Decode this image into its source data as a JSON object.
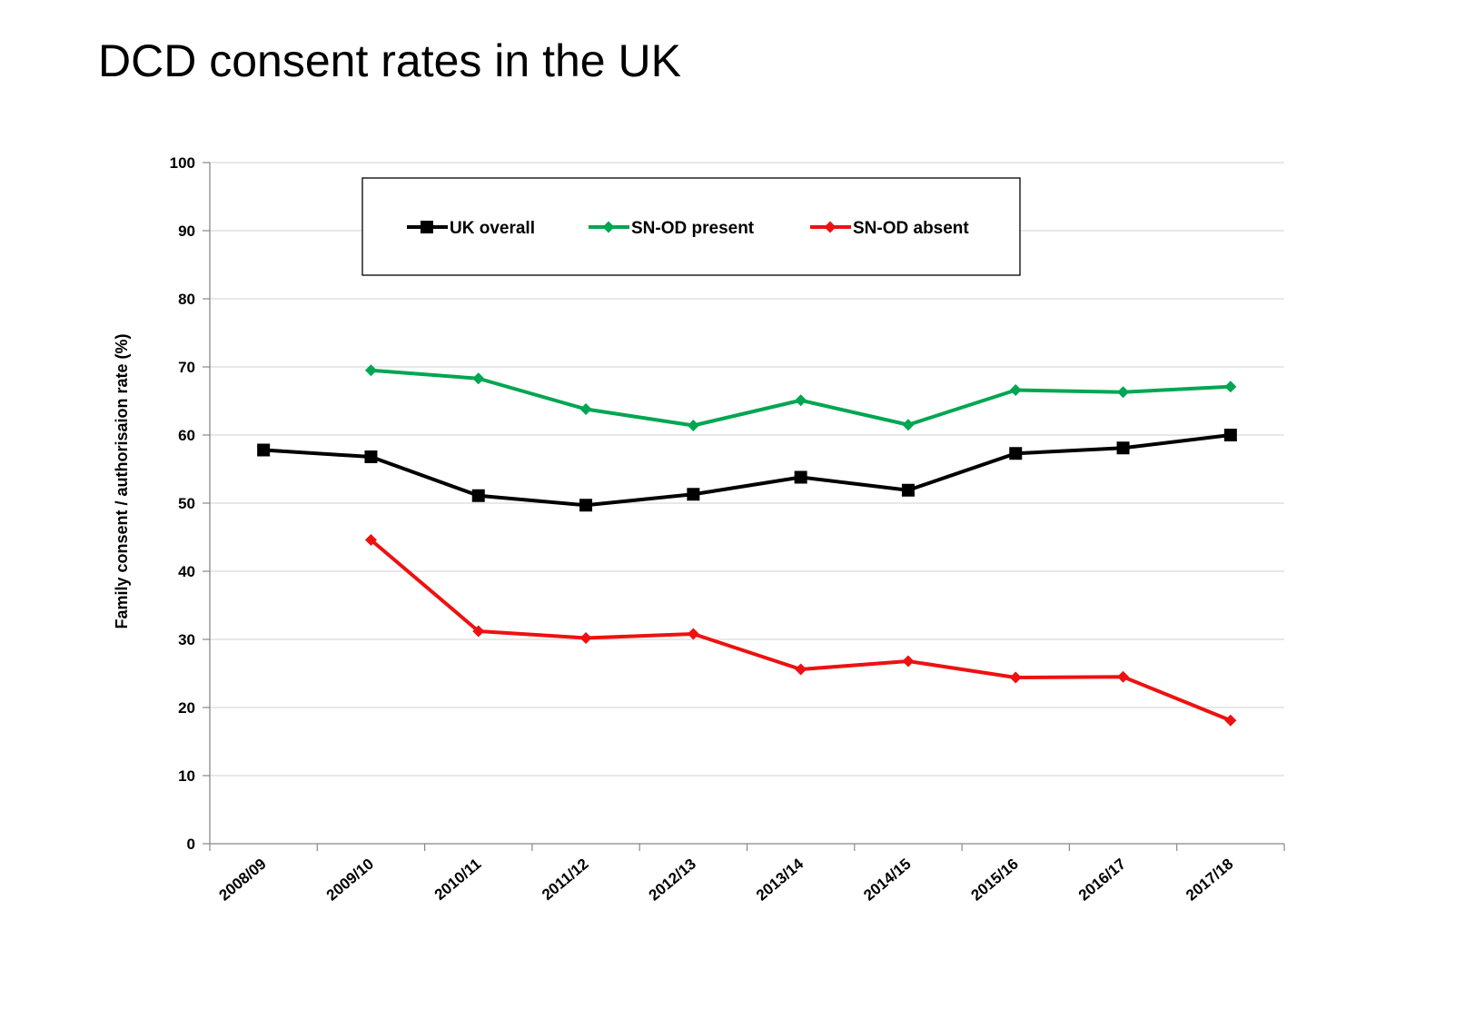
{
  "slide": {
    "title": "DCD consent rates in the UK"
  },
  "chart_data": {
    "type": "line",
    "title": "DCD consent rates in the UK",
    "xlabel": "",
    "ylabel": "Family consent / authorisaion rate (%)",
    "ylim": [
      0,
      100
    ],
    "yticks": [
      0,
      10,
      20,
      30,
      40,
      50,
      60,
      70,
      80,
      90,
      100
    ],
    "grid": true,
    "legend_position": "top",
    "categories": [
      "2008/09",
      "2009/10",
      "2010/11",
      "2011/12",
      "2012/13",
      "2013/14",
      "2014/15",
      "2015/16",
      "2016/17",
      "2017/18"
    ],
    "series": [
      {
        "name": "UK overall",
        "color": "#000000",
        "marker": "square",
        "values": [
          57.8,
          56.8,
          51.1,
          49.7,
          51.3,
          53.8,
          51.9,
          57.3,
          58.1,
          60.0
        ]
      },
      {
        "name": "SN-OD present",
        "color": "#00a651",
        "marker": "diamond",
        "values": [
          null,
          69.5,
          68.3,
          63.8,
          61.4,
          65.1,
          61.5,
          66.6,
          66.3,
          67.1
        ]
      },
      {
        "name": "SN-OD absent",
        "color": "#ee1111",
        "marker": "diamond",
        "values": [
          null,
          44.6,
          31.2,
          30.2,
          30.8,
          25.6,
          26.8,
          24.4,
          24.5,
          18.1
        ]
      }
    ]
  }
}
